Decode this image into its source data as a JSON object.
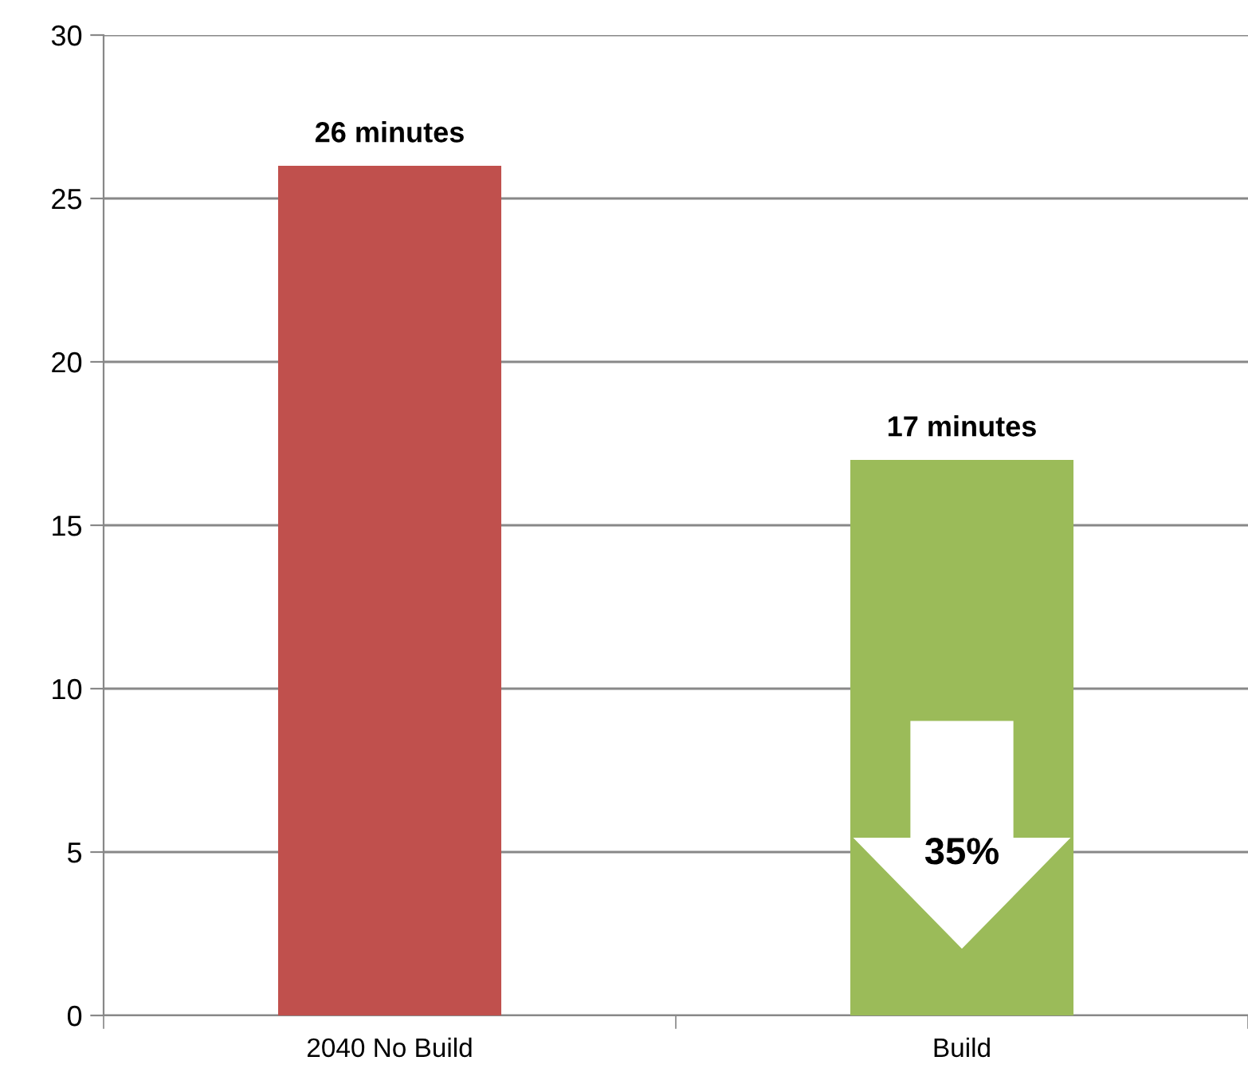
{
  "chart_data": {
    "type": "bar",
    "categories": [
      "2040 No Build",
      "Build"
    ],
    "values": [
      26,
      17
    ],
    "colors": [
      "#c0504d",
      "#9bbb59"
    ],
    "value_labels": [
      "26 minutes",
      "17 minutes"
    ],
    "annotations": [
      "35%"
    ],
    "ylim": [
      0,
      30
    ],
    "yticks": [
      0,
      5,
      10,
      15,
      20,
      25,
      30
    ],
    "grid": "y",
    "legend": false
  }
}
